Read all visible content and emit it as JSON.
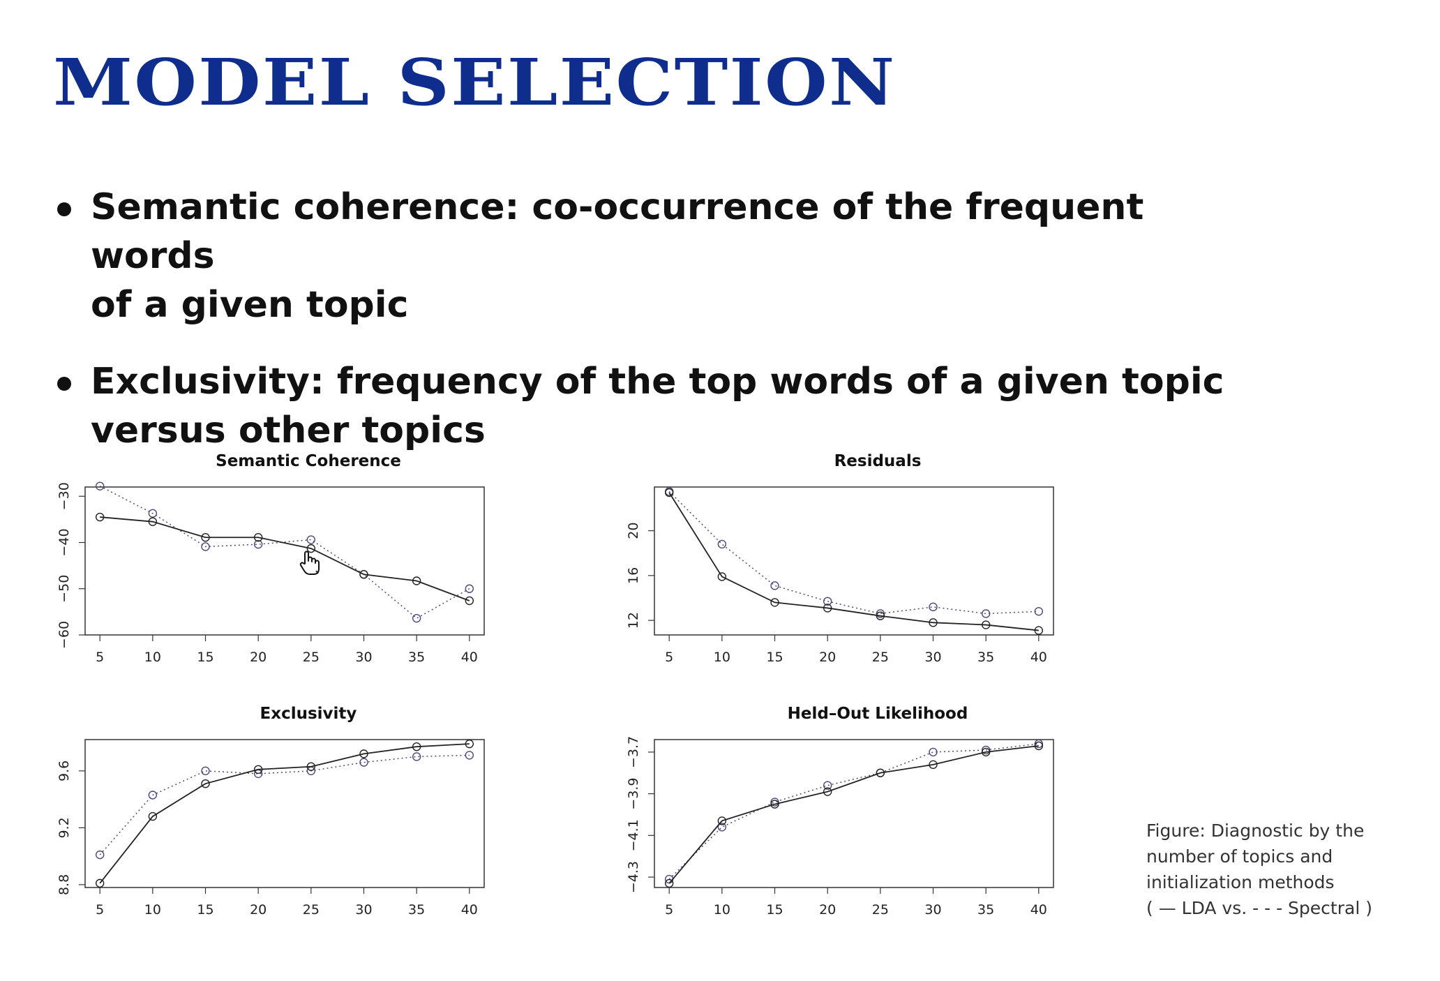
{
  "slide": {
    "title": "MODEL SELECTION",
    "bullets": [
      {
        "line1": "Semantic coherence: co-occurrence of the frequent words",
        "line2": "of a given topic"
      },
      {
        "line1": "Exclusivity: frequency of the top words of a given topic",
        "line2": "versus other topics"
      }
    ],
    "caption": {
      "line1": "Figure: Diagnostic by the",
      "line2": "number of topics and",
      "line3": "initialization methods",
      "line4": "( — LDA vs. - - - Spectral )"
    },
    "colors": {
      "title": "#0f2d8c",
      "lda": "#222222",
      "spectral": "#4a4a7a"
    },
    "icons": [
      "hand-cursor-icon"
    ]
  },
  "chart_data": [
    {
      "type": "line",
      "title": "Semantic Coherence",
      "x": [
        5,
        10,
        15,
        20,
        25,
        30,
        35,
        40
      ],
      "ylim": [
        -60,
        -28
      ],
      "yticks": [
        -60,
        -50,
        -40,
        -30
      ],
      "xticks": [
        5,
        10,
        15,
        20,
        25,
        30,
        35,
        40
      ],
      "series": [
        {
          "name": "LDA",
          "style": "solid",
          "values": [
            -34.5,
            -35.5,
            -38.9,
            -38.9,
            -41.3,
            -46.9,
            -48.3,
            -52.6
          ]
        },
        {
          "name": "Spectral",
          "style": "dotted",
          "values": [
            -27.8,
            -33.7,
            -40.9,
            -40.4,
            -39.4,
            -46.9,
            -56.4,
            -50.0
          ]
        }
      ]
    },
    {
      "type": "line",
      "title": "Residuals",
      "x": [
        5,
        10,
        15,
        20,
        25,
        30,
        35,
        40
      ],
      "ylim": [
        10.7,
        23.9
      ],
      "yticks": [
        12,
        16,
        20
      ],
      "xticks": [
        5,
        10,
        15,
        20,
        25,
        30,
        35,
        40
      ],
      "series": [
        {
          "name": "LDA",
          "style": "solid",
          "values": [
            23.4,
            15.9,
            13.6,
            13.1,
            12.4,
            11.8,
            11.6,
            11.1
          ]
        },
        {
          "name": "Spectral",
          "style": "dotted",
          "values": [
            23.5,
            18.8,
            15.1,
            13.7,
            12.6,
            13.2,
            12.6,
            12.8
          ]
        }
      ]
    },
    {
      "type": "line",
      "title": "Exclusivity",
      "x": [
        5,
        10,
        15,
        20,
        25,
        30,
        35,
        40
      ],
      "ylim": [
        8.78,
        9.82
      ],
      "yticks": [
        8.8,
        9.2,
        9.6
      ],
      "xticks": [
        5,
        10,
        15,
        20,
        25,
        30,
        35,
        40
      ],
      "series": [
        {
          "name": "LDA",
          "style": "solid",
          "values": [
            8.81,
            9.28,
            9.51,
            9.61,
            9.63,
            9.72,
            9.77,
            9.79
          ]
        },
        {
          "name": "Spectral",
          "style": "dotted",
          "values": [
            9.01,
            9.43,
            9.6,
            9.58,
            9.6,
            9.66,
            9.7,
            9.71
          ]
        }
      ]
    },
    {
      "type": "line",
      "title": "Held–Out Likelihood",
      "x": [
        5,
        10,
        15,
        20,
        25,
        30,
        35,
        40
      ],
      "ylim": [
        -4.35,
        -3.64
      ],
      "yticks": [
        -4.3,
        -4.1,
        -3.9,
        -3.7
      ],
      "xticks": [
        5,
        10,
        15,
        20,
        25,
        30,
        35,
        40
      ],
      "series": [
        {
          "name": "LDA",
          "style": "solid",
          "values": [
            -4.33,
            -4.03,
            -3.95,
            -3.89,
            -3.8,
            -3.76,
            -3.7,
            -3.67
          ]
        },
        {
          "name": "Spectral",
          "style": "dotted",
          "values": [
            -4.31,
            -4.06,
            -3.94,
            -3.86,
            -3.8,
            -3.7,
            -3.69,
            -3.66
          ]
        }
      ]
    }
  ]
}
